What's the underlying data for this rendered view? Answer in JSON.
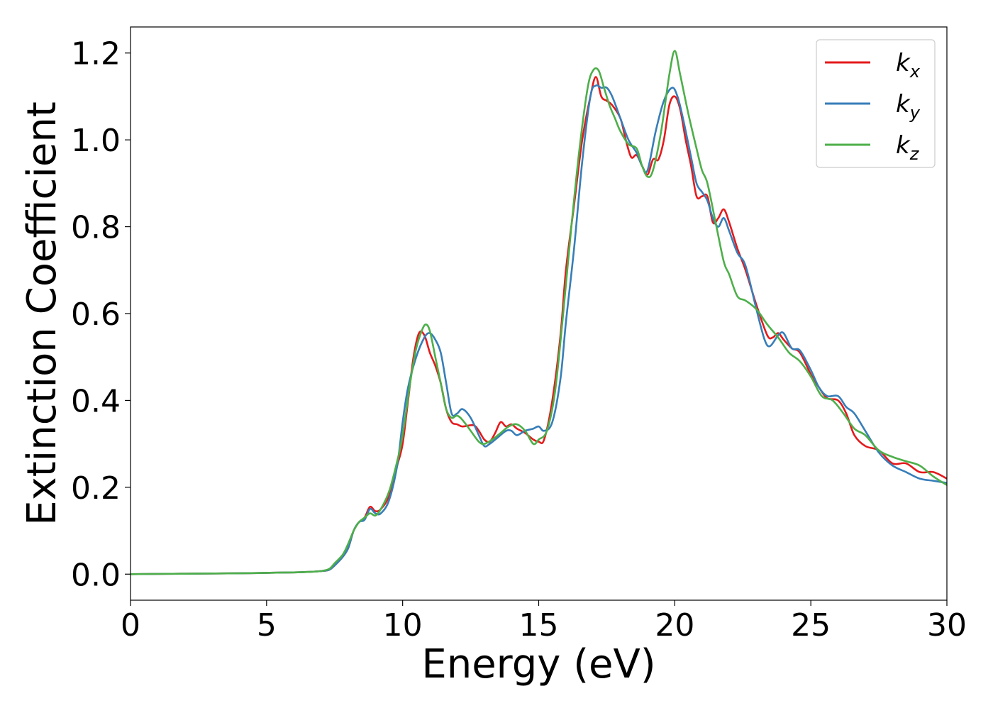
{
  "chart_data": {
    "type": "line",
    "title": "",
    "xlabel": "Energy (eV)",
    "ylabel": "Extinction Coefficient",
    "xlim": [
      0,
      30
    ],
    "ylim": [
      -0.06,
      1.26
    ],
    "xticks": [
      0,
      5,
      10,
      15,
      20,
      25,
      30
    ],
    "yticks": [
      0.0,
      0.2,
      0.4,
      0.6,
      0.8,
      1.0,
      1.2
    ],
    "xtick_labels": [
      "0",
      "5",
      "10",
      "15",
      "20",
      "25",
      "30"
    ],
    "ytick_labels": [
      "0.0",
      "0.2",
      "0.4",
      "0.6",
      "0.8",
      "1.0",
      "1.2"
    ],
    "grid": false,
    "legend_position": "top-right",
    "series": [
      {
        "name": "k_x",
        "label_base": "k",
        "label_sub": "x",
        "color": "#e41a1c",
        "points": [
          [
            0,
            0.0
          ],
          [
            2,
            0.001
          ],
          [
            4,
            0.002
          ],
          [
            5,
            0.003
          ],
          [
            6,
            0.004
          ],
          [
            6.5,
            0.005
          ],
          [
            7,
            0.007
          ],
          [
            7.3,
            0.01
          ],
          [
            7.5,
            0.02
          ],
          [
            7.8,
            0.04
          ],
          [
            8.0,
            0.06
          ],
          [
            8.2,
            0.1
          ],
          [
            8.4,
            0.12
          ],
          [
            8.6,
            0.13
          ],
          [
            8.8,
            0.155
          ],
          [
            9.0,
            0.145
          ],
          [
            9.2,
            0.15
          ],
          [
            9.5,
            0.18
          ],
          [
            9.8,
            0.25
          ],
          [
            10.0,
            0.3
          ],
          [
            10.2,
            0.4
          ],
          [
            10.4,
            0.5
          ],
          [
            10.6,
            0.555
          ],
          [
            10.8,
            0.55
          ],
          [
            11.0,
            0.51
          ],
          [
            11.2,
            0.48
          ],
          [
            11.4,
            0.44
          ],
          [
            11.6,
            0.38
          ],
          [
            11.8,
            0.35
          ],
          [
            12.0,
            0.345
          ],
          [
            12.2,
            0.34
          ],
          [
            12.6,
            0.343
          ],
          [
            12.8,
            0.33
          ],
          [
            13.0,
            0.31
          ],
          [
            13.2,
            0.305
          ],
          [
            13.4,
            0.325
          ],
          [
            13.6,
            0.35
          ],
          [
            13.8,
            0.34
          ],
          [
            14.0,
            0.345
          ],
          [
            14.2,
            0.335
          ],
          [
            14.5,
            0.325
          ],
          [
            14.8,
            0.31
          ],
          [
            15.0,
            0.305
          ],
          [
            15.2,
            0.31
          ],
          [
            15.5,
            0.4
          ],
          [
            15.8,
            0.55
          ],
          [
            16.0,
            0.7
          ],
          [
            16.3,
            0.85
          ],
          [
            16.6,
            1.0
          ],
          [
            16.9,
            1.1
          ],
          [
            17.1,
            1.145
          ],
          [
            17.3,
            1.1
          ],
          [
            17.5,
            1.09
          ],
          [
            17.7,
            1.08
          ],
          [
            18.0,
            1.05
          ],
          [
            18.2,
            1.0
          ],
          [
            18.4,
            0.96
          ],
          [
            18.6,
            0.965
          ],
          [
            18.8,
            0.94
          ],
          [
            19.0,
            0.92
          ],
          [
            19.2,
            0.955
          ],
          [
            19.4,
            0.955
          ],
          [
            19.6,
            1.0
          ],
          [
            19.8,
            1.08
          ],
          [
            20.0,
            1.1
          ],
          [
            20.2,
            1.07
          ],
          [
            20.4,
            1.0
          ],
          [
            20.6,
            0.94
          ],
          [
            20.8,
            0.87
          ],
          [
            21.0,
            0.87
          ],
          [
            21.2,
            0.87
          ],
          [
            21.4,
            0.81
          ],
          [
            21.6,
            0.82
          ],
          [
            21.8,
            0.84
          ],
          [
            22.0,
            0.81
          ],
          [
            22.3,
            0.75
          ],
          [
            22.6,
            0.7
          ],
          [
            23.0,
            0.62
          ],
          [
            23.4,
            0.55
          ],
          [
            23.6,
            0.545
          ],
          [
            23.8,
            0.555
          ],
          [
            24.0,
            0.54
          ],
          [
            24.3,
            0.52
          ],
          [
            24.6,
            0.51
          ],
          [
            25.0,
            0.46
          ],
          [
            25.3,
            0.43
          ],
          [
            25.6,
            0.405
          ],
          [
            26.0,
            0.4
          ],
          [
            26.3,
            0.37
          ],
          [
            26.6,
            0.32
          ],
          [
            27.0,
            0.295
          ],
          [
            27.5,
            0.285
          ],
          [
            28.0,
            0.255
          ],
          [
            28.5,
            0.255
          ],
          [
            29.0,
            0.235
          ],
          [
            29.5,
            0.235
          ],
          [
            30.0,
            0.22
          ]
        ]
      },
      {
        "name": "k_y",
        "label_base": "k",
        "label_sub": "y",
        "color": "#377eb8",
        "points": [
          [
            0,
            0.0
          ],
          [
            2,
            0.001
          ],
          [
            4,
            0.002
          ],
          [
            5,
            0.003
          ],
          [
            6,
            0.004
          ],
          [
            6.5,
            0.005
          ],
          [
            7,
            0.007
          ],
          [
            7.3,
            0.01
          ],
          [
            7.5,
            0.02
          ],
          [
            7.8,
            0.04
          ],
          [
            8.0,
            0.06
          ],
          [
            8.2,
            0.1
          ],
          [
            8.4,
            0.12
          ],
          [
            8.6,
            0.125
          ],
          [
            8.8,
            0.15
          ],
          [
            9.0,
            0.14
          ],
          [
            9.2,
            0.14
          ],
          [
            9.5,
            0.17
          ],
          [
            9.8,
            0.25
          ],
          [
            10.0,
            0.35
          ],
          [
            10.2,
            0.43
          ],
          [
            10.5,
            0.5
          ],
          [
            10.8,
            0.545
          ],
          [
            11.0,
            0.555
          ],
          [
            11.2,
            0.54
          ],
          [
            11.4,
            0.51
          ],
          [
            11.6,
            0.44
          ],
          [
            11.8,
            0.37
          ],
          [
            12.0,
            0.37
          ],
          [
            12.2,
            0.38
          ],
          [
            12.5,
            0.36
          ],
          [
            12.8,
            0.32
          ],
          [
            13.0,
            0.295
          ],
          [
            13.2,
            0.3
          ],
          [
            13.5,
            0.315
          ],
          [
            13.8,
            0.33
          ],
          [
            14.0,
            0.33
          ],
          [
            14.2,
            0.32
          ],
          [
            14.5,
            0.33
          ],
          [
            14.8,
            0.335
          ],
          [
            15.0,
            0.34
          ],
          [
            15.2,
            0.33
          ],
          [
            15.5,
            0.35
          ],
          [
            15.8,
            0.45
          ],
          [
            16.0,
            0.58
          ],
          [
            16.3,
            0.75
          ],
          [
            16.6,
            0.95
          ],
          [
            16.9,
            1.1
          ],
          [
            17.1,
            1.125
          ],
          [
            17.3,
            1.12
          ],
          [
            17.5,
            1.12
          ],
          [
            17.7,
            1.1
          ],
          [
            18.0,
            1.05
          ],
          [
            18.3,
            1.0
          ],
          [
            18.6,
            0.97
          ],
          [
            18.8,
            0.94
          ],
          [
            19.0,
            0.93
          ],
          [
            19.3,
            1.02
          ],
          [
            19.6,
            1.09
          ],
          [
            19.9,
            1.12
          ],
          [
            20.1,
            1.1
          ],
          [
            20.3,
            1.05
          ],
          [
            20.6,
            0.96
          ],
          [
            20.8,
            0.9
          ],
          [
            21.0,
            0.88
          ],
          [
            21.2,
            0.86
          ],
          [
            21.4,
            0.82
          ],
          [
            21.6,
            0.8
          ],
          [
            21.8,
            0.82
          ],
          [
            22.0,
            0.79
          ],
          [
            22.3,
            0.74
          ],
          [
            22.6,
            0.71
          ],
          [
            23.0,
            0.61
          ],
          [
            23.3,
            0.54
          ],
          [
            23.5,
            0.525
          ],
          [
            23.8,
            0.55
          ],
          [
            24.0,
            0.555
          ],
          [
            24.3,
            0.52
          ],
          [
            24.6,
            0.515
          ],
          [
            25.0,
            0.47
          ],
          [
            25.3,
            0.43
          ],
          [
            25.6,
            0.41
          ],
          [
            26.0,
            0.41
          ],
          [
            26.3,
            0.385
          ],
          [
            26.6,
            0.37
          ],
          [
            27.0,
            0.33
          ],
          [
            27.5,
            0.28
          ],
          [
            28.0,
            0.25
          ],
          [
            28.5,
            0.235
          ],
          [
            29.0,
            0.22
          ],
          [
            29.5,
            0.215
          ],
          [
            30.0,
            0.21
          ]
        ]
      },
      {
        "name": "k_z",
        "label_base": "k",
        "label_sub": "z",
        "color": "#4daf4a",
        "points": [
          [
            0,
            0.0
          ],
          [
            2,
            0.001
          ],
          [
            4,
            0.002
          ],
          [
            5,
            0.003
          ],
          [
            6,
            0.004
          ],
          [
            6.5,
            0.005
          ],
          [
            7,
            0.007
          ],
          [
            7.3,
            0.012
          ],
          [
            7.5,
            0.025
          ],
          [
            7.8,
            0.045
          ],
          [
            8.0,
            0.07
          ],
          [
            8.2,
            0.1
          ],
          [
            8.4,
            0.12
          ],
          [
            8.6,
            0.13
          ],
          [
            8.8,
            0.14
          ],
          [
            9.0,
            0.135
          ],
          [
            9.2,
            0.15
          ],
          [
            9.5,
            0.19
          ],
          [
            9.8,
            0.26
          ],
          [
            10.0,
            0.32
          ],
          [
            10.3,
            0.45
          ],
          [
            10.5,
            0.52
          ],
          [
            10.7,
            0.56
          ],
          [
            10.85,
            0.575
          ],
          [
            11.0,
            0.56
          ],
          [
            11.2,
            0.5
          ],
          [
            11.4,
            0.44
          ],
          [
            11.6,
            0.38
          ],
          [
            11.8,
            0.36
          ],
          [
            12.0,
            0.365
          ],
          [
            12.2,
            0.355
          ],
          [
            12.5,
            0.33
          ],
          [
            12.8,
            0.305
          ],
          [
            13.0,
            0.3
          ],
          [
            13.3,
            0.31
          ],
          [
            13.6,
            0.325
          ],
          [
            13.9,
            0.34
          ],
          [
            14.2,
            0.345
          ],
          [
            14.5,
            0.33
          ],
          [
            14.8,
            0.3
          ],
          [
            15.0,
            0.31
          ],
          [
            15.3,
            0.33
          ],
          [
            15.6,
            0.42
          ],
          [
            15.9,
            0.6
          ],
          [
            16.2,
            0.8
          ],
          [
            16.5,
            0.98
          ],
          [
            16.8,
            1.12
          ],
          [
            17.0,
            1.16
          ],
          [
            17.2,
            1.16
          ],
          [
            17.4,
            1.12
          ],
          [
            17.6,
            1.08
          ],
          [
            17.8,
            1.05
          ],
          [
            18.0,
            1.02
          ],
          [
            18.3,
            0.99
          ],
          [
            18.6,
            0.98
          ],
          [
            18.8,
            0.94
          ],
          [
            19.0,
            0.915
          ],
          [
            19.2,
            0.93
          ],
          [
            19.5,
            1.02
          ],
          [
            19.8,
            1.15
          ],
          [
            20.0,
            1.205
          ],
          [
            20.2,
            1.15
          ],
          [
            20.5,
            1.06
          ],
          [
            20.8,
            0.98
          ],
          [
            21.0,
            0.93
          ],
          [
            21.2,
            0.9
          ],
          [
            21.5,
            0.81
          ],
          [
            21.8,
            0.72
          ],
          [
            22.0,
            0.69
          ],
          [
            22.3,
            0.64
          ],
          [
            22.6,
            0.63
          ],
          [
            23.0,
            0.61
          ],
          [
            23.4,
            0.575
          ],
          [
            23.8,
            0.545
          ],
          [
            24.2,
            0.51
          ],
          [
            24.6,
            0.49
          ],
          [
            25.0,
            0.455
          ],
          [
            25.4,
            0.41
          ],
          [
            25.8,
            0.4
          ],
          [
            26.2,
            0.37
          ],
          [
            26.6,
            0.335
          ],
          [
            27.0,
            0.32
          ],
          [
            27.5,
            0.285
          ],
          [
            28.0,
            0.27
          ],
          [
            28.5,
            0.26
          ],
          [
            29.0,
            0.25
          ],
          [
            29.5,
            0.225
          ],
          [
            30.0,
            0.205
          ]
        ]
      }
    ]
  }
}
